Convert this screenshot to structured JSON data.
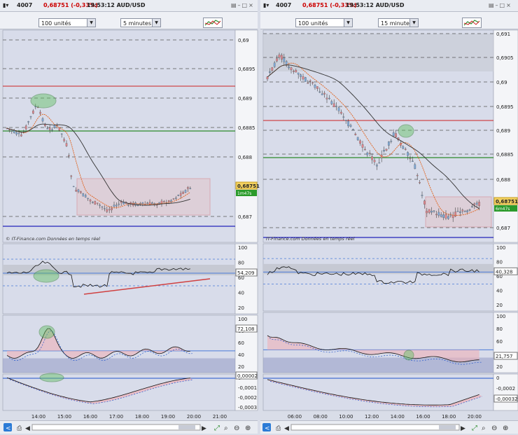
{
  "windows": [
    {
      "id": "left",
      "title_num": "4007",
      "title_change": "0,68751 (-0,33%)",
      "title_time": "19:53:12 AUD/USD",
      "quantity": "100 unités",
      "timeframe": "5 minutes",
      "watermark": "© IT-Finance.com  Données en temps réel",
      "price_axis": [
        "0,69",
        "0,6895",
        "0,689",
        "0,6885",
        "0,688",
        "0,687"
      ],
      "price_label": "0,68751",
      "countdown_label": "1m47s",
      "rsi_axis": [
        "100",
        "80",
        "60",
        "40",
        "20"
      ],
      "rsi_value": "54,209",
      "stoch_axis": [
        "100",
        "80",
        "60",
        "40",
        "20"
      ],
      "stoch_value": "72,108",
      "macd_axis": [
        "0",
        "-0,0001",
        "-0,0002",
        "-0,0003"
      ],
      "macd_value": "0,00002",
      "time_axis": [
        "14:00",
        "15:00",
        "16:00",
        "17:00",
        "18:00",
        "19:00",
        "20:00",
        "21:00"
      ]
    },
    {
      "id": "right",
      "title_num": "4007",
      "title_change": "0,68751 (-0,33%)",
      "title_time": "19:53:12 AUD/USD",
      "quantity": "100 unités",
      "timeframe": "15 minutes",
      "watermark": "IT-Finance.com  Données en temps réel",
      "price_axis": [
        "0,691",
        "0,6905",
        "0,69",
        "0,6895",
        "0,689",
        "0,6885",
        "0,688",
        "0,687"
      ],
      "price_label": "0,68751",
      "countdown_label": "6m47s",
      "rsi_axis": [
        "100",
        "80",
        "60",
        "40",
        "20"
      ],
      "rsi_value": "40,328",
      "stoch_axis": [
        "100",
        "80",
        "60",
        "40",
        "20"
      ],
      "stoch_value": "21,757",
      "macd_axis": [
        "0",
        "-0,0002",
        "-0,0004"
      ],
      "macd_value": "-0,00032",
      "time_axis": [
        "06:00",
        "08:00",
        "10:00",
        "12:00",
        "14:00",
        "16:00",
        "18:00",
        "20:00"
      ]
    }
  ],
  "colors": {
    "bg": "#d8dcea",
    "bull": "#7fa9d8",
    "bear": "#e0848c",
    "resistance": "#cc2222",
    "support": "#2a8a2a",
    "low_line": "#2222bb",
    "ema": "#e06a2a",
    "sma": "#333333",
    "rsi_fill_bull": "#8fc4ef",
    "rsi_fill_bear": "#efb0b8",
    "highlight": "#60c060"
  },
  "chart_data": [
    {
      "type": "line",
      "title": "AUD/USD 5 minutes",
      "ylim": [
        0.6865,
        0.6903
      ],
      "price": 0.68751,
      "levels": [
        0.6892,
        0.6885,
        0.6867
      ]
    },
    {
      "type": "line",
      "title": "AUD/USD 15 minutes",
      "ylim": [
        0.6865,
        0.6912
      ],
      "price": 0.68751,
      "levels": [
        0.6887,
        0.6883,
        0.6868
      ]
    }
  ]
}
